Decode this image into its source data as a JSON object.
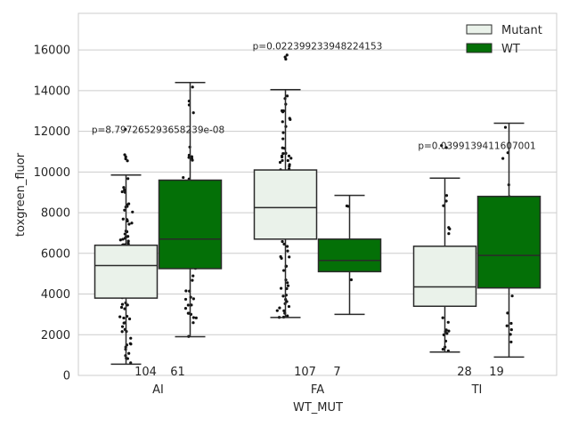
{
  "chart_data": {
    "type": "box",
    "xlabel": "WT_MUT",
    "ylabel": "toxgreen_fluor",
    "ylim": [
      0,
      17800
    ],
    "yticks": [
      0,
      2000,
      4000,
      6000,
      8000,
      10000,
      12000,
      14000,
      16000
    ],
    "ytick_labels": [
      "0",
      "2000",
      "4000",
      "6000",
      "8000",
      "10000",
      "12000",
      "14000",
      "16000"
    ],
    "grid": "horizontal",
    "legend_position": "top-right",
    "categories": [
      "AI",
      "FA",
      "TI"
    ],
    "series": [
      {
        "name": "Mutant",
        "color": "#eaf2ea",
        "boxes": [
          {
            "category": "AI",
            "whisker_low": 550,
            "q1": 3800,
            "median": 5400,
            "q3": 6400,
            "whisker_high": 9850,
            "count": "104",
            "outliers": [
              10550,
              10650,
              10750,
              10850,
              12100
            ]
          },
          {
            "category": "FA",
            "whisker_low": 2850,
            "q1": 6700,
            "median": 8250,
            "q3": 10100,
            "whisker_high": 14050,
            "count": "107",
            "outliers": [
              15550,
              15650,
              15750
            ]
          },
          {
            "category": "TI",
            "whisker_low": 1150,
            "q1": 3400,
            "median": 4350,
            "q3": 6350,
            "whisker_high": 9700,
            "count": "28",
            "outliers": [
              11200,
              11300
            ]
          }
        ]
      },
      {
        "name": "WT",
        "color": "#047007",
        "boxes": [
          {
            "category": "AI",
            "whisker_low": 1900,
            "q1": 5250,
            "median": 6700,
            "q3": 9600,
            "whisker_high": 14400,
            "count": "61",
            "outliers": []
          },
          {
            "category": "FA",
            "whisker_low": 3000,
            "q1": 5100,
            "median": 5650,
            "q3": 6700,
            "whisker_high": 8850,
            "count": "7",
            "outliers": []
          },
          {
            "category": "TI",
            "whisker_low": 900,
            "q1": 4300,
            "median": 5900,
            "q3": 8800,
            "whisker_high": 12400,
            "count": "19",
            "outliers": []
          }
        ]
      }
    ],
    "annotations": [
      {
        "category": "AI",
        "text": "p=8.797265293658239e-08",
        "y": 12100
      },
      {
        "category": "FA",
        "text": "p=0.022399233948224153",
        "y": 16200
      },
      {
        "category": "TI",
        "text": "p=0.0399139411607001",
        "y": 11300
      }
    ]
  }
}
